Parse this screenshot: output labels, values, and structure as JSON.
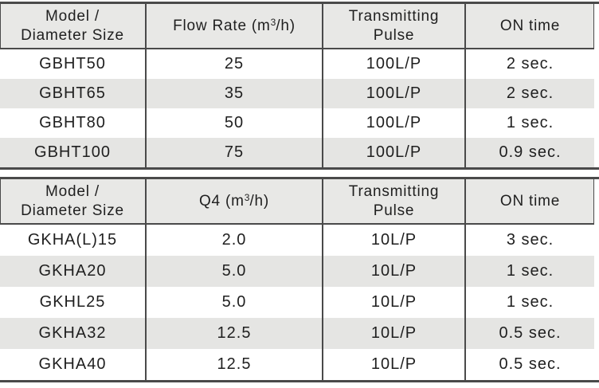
{
  "colors": {
    "rule": "#4a4a4a",
    "header_bg": "#e8e8e6",
    "alt_row_bg": "#e5e5e3",
    "text": "#1f1f1f"
  },
  "tables": [
    {
      "name": "flow-rate-table",
      "header": {
        "model_line1": "Model /",
        "model_line2": "Diameter Size",
        "value_pre": "Flow Rate (m",
        "value_sup": "3",
        "value_post": "/h)",
        "pulse_line1": "Transmitting",
        "pulse_line2": "Pulse",
        "on_time": "ON time"
      },
      "rows": [
        {
          "model": "GBHT50",
          "value": "25",
          "pulse": "100L/P",
          "on_time": "2 sec."
        },
        {
          "model": "GBHT65",
          "value": "35",
          "pulse": "100L/P",
          "on_time": "2 sec."
        },
        {
          "model": "GBHT80",
          "value": "50",
          "pulse": "100L/P",
          "on_time": "1 sec."
        },
        {
          "model": "GBHT100",
          "value": "75",
          "pulse": "100L/P",
          "on_time": "0.9 sec."
        }
      ]
    },
    {
      "name": "q4-table",
      "header": {
        "model_line1": "Model /",
        "model_line2": "Diameter Size",
        "value_pre": "Q4 (m",
        "value_sup": "3",
        "value_post": "/h)",
        "pulse_line1": "Transmitting",
        "pulse_line2": "Pulse",
        "on_time": "ON time"
      },
      "rows": [
        {
          "model": "GKHA(L)15",
          "value": "2.0",
          "pulse": "10L/P",
          "on_time": "3 sec."
        },
        {
          "model": "GKHA20",
          "value": "5.0",
          "pulse": "10L/P",
          "on_time": "1 sec."
        },
        {
          "model": "GKHL25",
          "value": "5.0",
          "pulse": "10L/P",
          "on_time": "1 sec."
        },
        {
          "model": "GKHA32",
          "value": "12.5",
          "pulse": "10L/P",
          "on_time": "0.5 sec."
        },
        {
          "model": "GKHA40",
          "value": "12.5",
          "pulse": "10L/P",
          "on_time": "0.5 sec."
        }
      ]
    }
  ]
}
